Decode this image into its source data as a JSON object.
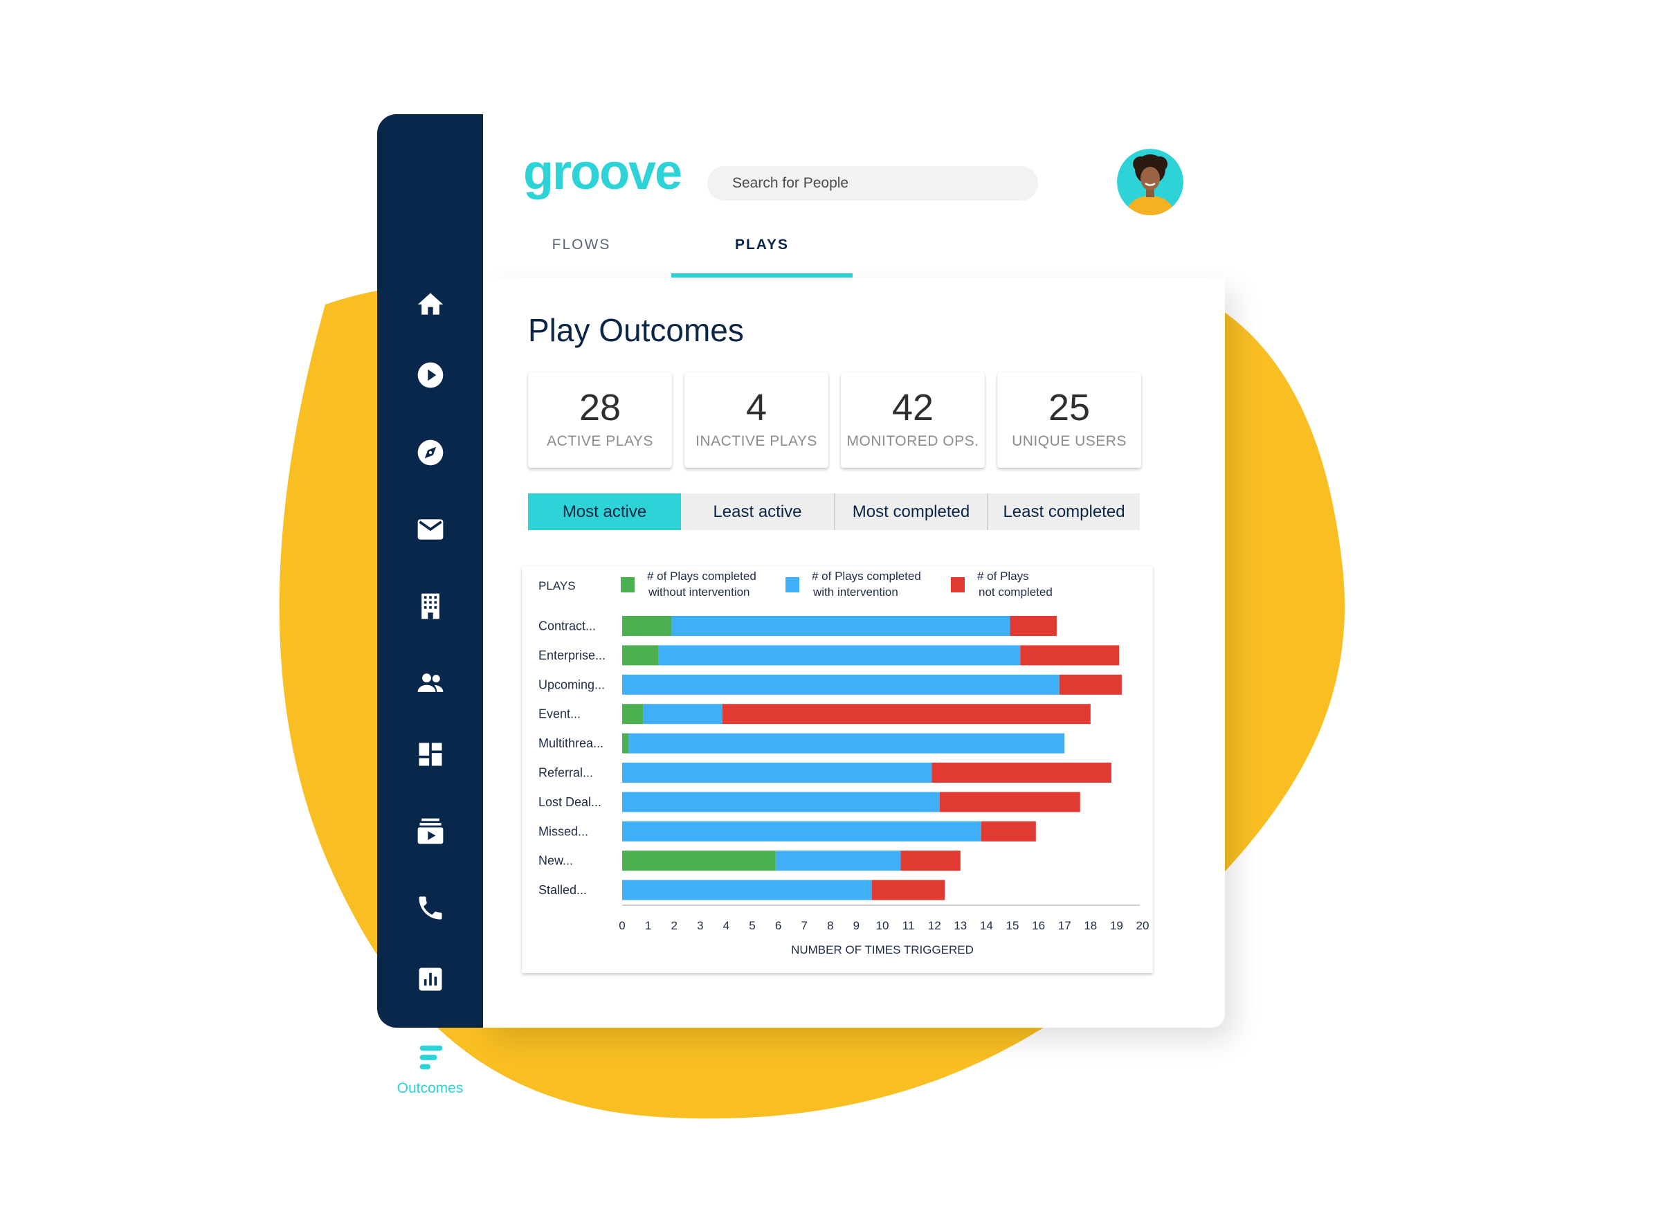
{
  "app": {
    "brand": "groove",
    "search": {
      "placeholder": "Search for People",
      "value": ""
    },
    "colors": {
      "accent": "#2dd3d6",
      "navy": "#08274a",
      "blob": "#f8be22"
    }
  },
  "sidebar": {
    "items": [
      {
        "icon": "home-icon",
        "label": ""
      },
      {
        "icon": "play-circle-icon",
        "label": ""
      },
      {
        "icon": "compass-icon",
        "label": ""
      },
      {
        "icon": "mail-icon",
        "label": ""
      },
      {
        "icon": "building-icon",
        "label": ""
      },
      {
        "icon": "people-icon",
        "label": ""
      },
      {
        "icon": "dashboard-icon",
        "label": ""
      },
      {
        "icon": "video-library-icon",
        "label": ""
      },
      {
        "icon": "phone-icon",
        "label": ""
      },
      {
        "icon": "bar-chart-icon",
        "label": ""
      },
      {
        "icon": "outcomes-icon",
        "label": "Outcomes",
        "active": true
      }
    ]
  },
  "tabs": [
    {
      "label": "FLOWS",
      "active": false
    },
    {
      "label": "PLAYS",
      "active": true
    }
  ],
  "main": {
    "title": "Play Outcomes",
    "stats": [
      {
        "value": "28",
        "label": "ACTIVE PLAYS"
      },
      {
        "value": "4",
        "label": "INACTIVE PLAYS"
      },
      {
        "value": "42",
        "label": "MONITORED OPS."
      },
      {
        "value": "25",
        "label": "UNIQUE USERS"
      }
    ],
    "filters": [
      {
        "label": "Most active",
        "active": true
      },
      {
        "label": "Least active",
        "active": false
      },
      {
        "label": "Most completed",
        "active": false
      },
      {
        "label": "Least completed",
        "active": false
      }
    ]
  },
  "chart_data": {
    "type": "bar",
    "orientation": "horizontal",
    "stacked": true,
    "row_header": "PLAYS",
    "categories": [
      "Contract...",
      "Enterprise...",
      "Upcoming...",
      "Event...",
      "Multithrea...",
      "Referral...",
      "Lost Deal...",
      "Missed...",
      "New...",
      "Stalled..."
    ],
    "series": [
      {
        "name": "# of Plays completed\nwithout intervention",
        "color": "#4caf50",
        "values": [
          1.9,
          1.4,
          0,
          0.8,
          0.25,
          0,
          0,
          0,
          5.9,
          0
        ]
      },
      {
        "name": "# of Plays completed\nwith intervention",
        "color": "#3fb0f7",
        "values": [
          13.0,
          13.9,
          16.8,
          3.05,
          16.75,
          11.9,
          12.2,
          13.8,
          4.8,
          9.6
        ]
      },
      {
        "name": "# of Plays\nnot completed",
        "color": "#e03a32",
        "values": [
          1.8,
          3.8,
          2.4,
          14.15,
          0,
          6.9,
          5.4,
          2.1,
          2.3,
          2.8
        ]
      }
    ],
    "xlabel": "NUMBER OF TIMES TRIGGERED",
    "xlim": [
      0,
      20
    ],
    "xticks": [
      "0",
      "1",
      "2",
      "3",
      "4",
      "5",
      "6",
      "7",
      "8",
      "9",
      "10",
      "11",
      "12",
      "13",
      "14",
      "15",
      "16",
      "17",
      "18",
      "19",
      "20"
    ],
    "legend": "top",
    "grid": false
  }
}
